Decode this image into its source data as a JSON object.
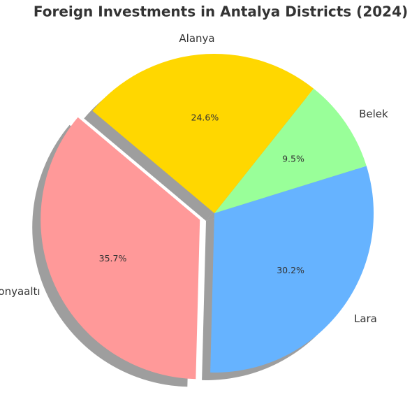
{
  "chart_data": {
    "type": "pie",
    "title": "Foreign Investments in Antalya Districts (2024)",
    "categories": [
      "Konyaaltı",
      "Lara",
      "Belek",
      "Alanya"
    ],
    "values": [
      35.7,
      30.2,
      9.5,
      24.6
    ],
    "value_labels": [
      "35.7%",
      "30.2%",
      "9.5%",
      "24.6%"
    ],
    "colors": [
      "#ff9999",
      "#66b3ff",
      "#99ff99",
      "#ffd700"
    ]
  }
}
